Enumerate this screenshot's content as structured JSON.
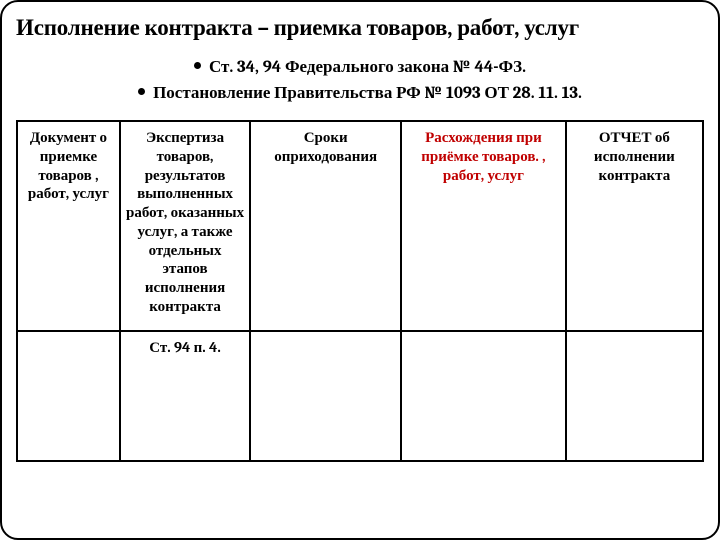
{
  "slide": {
    "title": "Исполнение контракта – приемка товаров, работ, услуг",
    "bullet1": "Ст. 34, 94  Федерального закона № 44-ФЗ.",
    "bullet2": "Постановление Правительства РФ № 1093 ОТ 28. 11. 13."
  },
  "table": {
    "columns": [
      {
        "width_pct": 15,
        "header": "Документ о приемке товаров , работ, услуг",
        "color": "#000000"
      },
      {
        "width_pct": 19,
        "header": "Экспертиза товаров, результатов выполненных работ, оказанных услуг, а также отдельных этапов исполнения контракта",
        "color": "#000000"
      },
      {
        "width_pct": 22,
        "header": "Сроки оприходования",
        "color": "#000000"
      },
      {
        "width_pct": 24,
        "header": "Расхождения при приёмке товаров. , работ, услуг",
        "color": "#c00000"
      },
      {
        "width_pct": 20,
        "header": "ОТЧЕТ  об исполнении контракта",
        "color": "#000000"
      }
    ],
    "row2": [
      "",
      "Ст. 94 п. 4.",
      "",
      "",
      ""
    ]
  },
  "style": {
    "border_color": "#000000",
    "accent_color": "#c00000",
    "background": "#ffffff",
    "title_fontsize_pt": 17,
    "body_fontsize_pt": 11,
    "font_family": "Cambria / Times New Roman"
  }
}
